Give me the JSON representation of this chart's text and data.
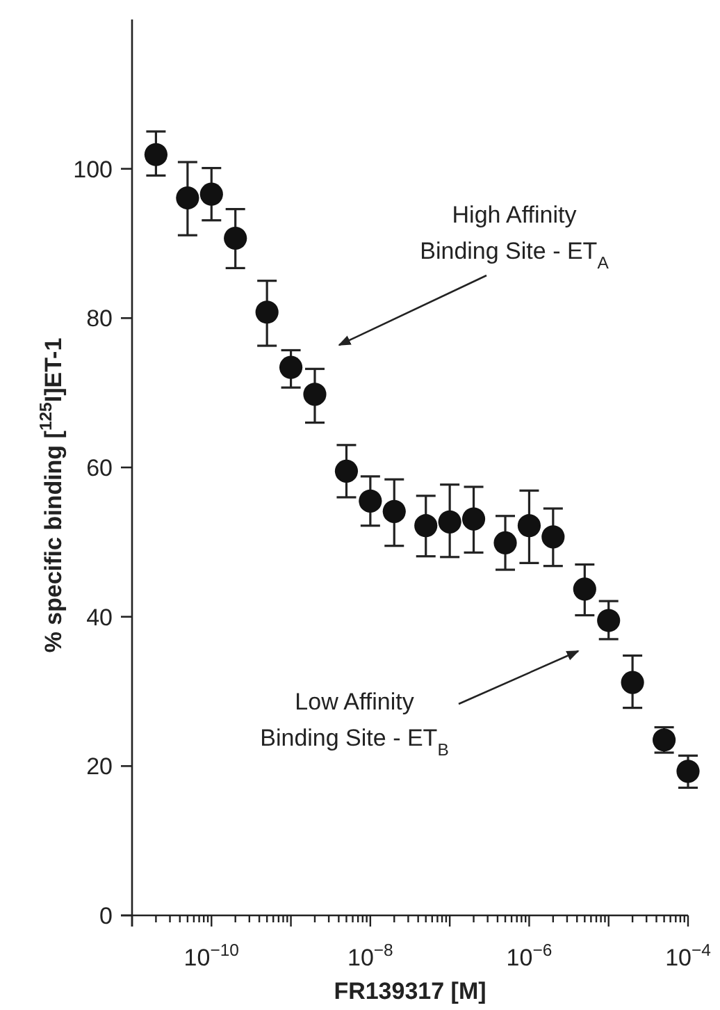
{
  "chart_data": {
    "type": "scatter",
    "xlabel": "FR139317 [M]",
    "ylabel": "% specific binding [$^{125}$I]ET-1",
    "log": "x",
    "marker": "circle",
    "grid": false,
    "xlim": [
      1e-11,
      0.0001
    ],
    "ylim": [
      0,
      120
    ],
    "yticks": [
      0,
      20,
      40,
      60,
      80,
      100
    ],
    "xticks": [
      {
        "value": 1e-11,
        "label": null
      },
      {
        "value": 2e-11,
        "label": null
      },
      {
        "value": 3e-11,
        "label": null
      },
      {
        "value": 4e-11,
        "label": null
      },
      {
        "value": 5e-11,
        "label": null
      },
      {
        "value": 6e-11,
        "label": null
      },
      {
        "value": 7e-11,
        "label": null
      },
      {
        "value": 8e-11,
        "label": null
      },
      {
        "value": 9e-11,
        "label": null
      },
      {
        "value": 1e-10,
        "label": "10$^{−10}$"
      },
      {
        "value": 2e-10,
        "label": null
      },
      {
        "value": 3e-10,
        "label": null
      },
      {
        "value": 4e-10,
        "label": null
      },
      {
        "value": 5e-10,
        "label": null
      },
      {
        "value": 6e-10,
        "label": null
      },
      {
        "value": 7e-10,
        "label": null
      },
      {
        "value": 8e-10,
        "label": null
      },
      {
        "value": 9e-10,
        "label": null
      },
      {
        "value": 1e-09,
        "label": null
      },
      {
        "value": 2e-09,
        "label": null
      },
      {
        "value": 3e-09,
        "label": null
      },
      {
        "value": 4e-09,
        "label": null
      },
      {
        "value": 5e-09,
        "label": null
      },
      {
        "value": 6e-09,
        "label": null
      },
      {
        "value": 7e-09,
        "label": null
      },
      {
        "value": 8e-09,
        "label": null
      },
      {
        "value": 9e-09,
        "label": null
      },
      {
        "value": 1e-08,
        "label": "10$^{−8}$"
      },
      {
        "value": 2e-08,
        "label": null
      },
      {
        "value": 3e-08,
        "label": null
      },
      {
        "value": 4e-08,
        "label": null
      },
      {
        "value": 5e-08,
        "label": null
      },
      {
        "value": 6e-08,
        "label": null
      },
      {
        "value": 7e-08,
        "label": null
      },
      {
        "value": 8e-08,
        "label": null
      },
      {
        "value": 9e-08,
        "label": null
      },
      {
        "value": 1e-07,
        "label": null
      },
      {
        "value": 2e-07,
        "label": null
      },
      {
        "value": 3e-07,
        "label": null
      },
      {
        "value": 4e-07,
        "label": null
      },
      {
        "value": 5e-07,
        "label": null
      },
      {
        "value": 6e-07,
        "label": null
      },
      {
        "value": 7e-07,
        "label": null
      },
      {
        "value": 8e-07,
        "label": null
      },
      {
        "value": 9e-07,
        "label": null
      },
      {
        "value": 1e-06,
        "label": "10$^{−6}$"
      },
      {
        "value": 2e-06,
        "label": null
      },
      {
        "value": 3e-06,
        "label": null
      },
      {
        "value": 4e-06,
        "label": null
      },
      {
        "value": 5e-06,
        "label": null
      },
      {
        "value": 6e-06,
        "label": null
      },
      {
        "value": 7e-06,
        "label": null
      },
      {
        "value": 8e-06,
        "label": null
      },
      {
        "value": 9e-06,
        "label": null
      },
      {
        "value": 1e-05,
        "label": null
      },
      {
        "value": 2e-05,
        "label": null
      },
      {
        "value": 3e-05,
        "label": null
      },
      {
        "value": 4e-05,
        "label": null
      },
      {
        "value": 5e-05,
        "label": null
      },
      {
        "value": 6e-05,
        "label": null
      },
      {
        "value": 7e-05,
        "label": null
      },
      {
        "value": 8e-05,
        "label": null
      },
      {
        "value": 9e-05,
        "label": null
      },
      {
        "value": 0.0001,
        "label": "10$^{−4}$"
      }
    ],
    "series": [
      {
        "color": "#111111",
        "x": [
          2e-11,
          5e-11,
          1e-10,
          2e-10,
          5e-10,
          1e-09,
          2e-09,
          5e-09,
          1e-08,
          2e-08,
          5e-08,
          1e-07,
          2e-07,
          5e-07,
          1e-06,
          2e-06,
          5e-06,
          1e-05,
          2e-05,
          5e-05,
          0.0001
        ],
        "values": [
          101.9,
          96.1,
          96.6,
          90.7,
          80.8,
          73.4,
          69.8,
          59.5,
          55.5,
          54.1,
          52.2,
          52.7,
          53.1,
          49.9,
          52.2,
          50.7,
          43.7,
          39.5,
          31.2,
          23.5,
          19.3
        ],
        "errors": [
          [
            99.1,
            105
          ],
          [
            91.1,
            100.9
          ],
          [
            93.1,
            100.1
          ],
          [
            86.7,
            94.6
          ],
          [
            76.3,
            85
          ],
          [
            70.7,
            75.7
          ],
          [
            66,
            73.2
          ],
          [
            56,
            63
          ],
          [
            52.2,
            58.8
          ],
          [
            49.5,
            58.4
          ],
          [
            48.1,
            56.2
          ],
          [
            48,
            57.7
          ],
          [
            48.6,
            57.4
          ],
          [
            46.3,
            53.5
          ],
          [
            47.2,
            56.9
          ],
          [
            46.8,
            54.5
          ],
          [
            40.2,
            47
          ],
          [
            37,
            42.1
          ],
          [
            27.8,
            34.8
          ],
          [
            21.8,
            25.2
          ],
          [
            17.1,
            21.4
          ]
        ]
      }
    ],
    "annotations": [
      "High Affinity\nBinding Site - ET$_{A}$",
      "Low Affinity\nBinding Site - ET$_{B}$"
    ]
  }
}
